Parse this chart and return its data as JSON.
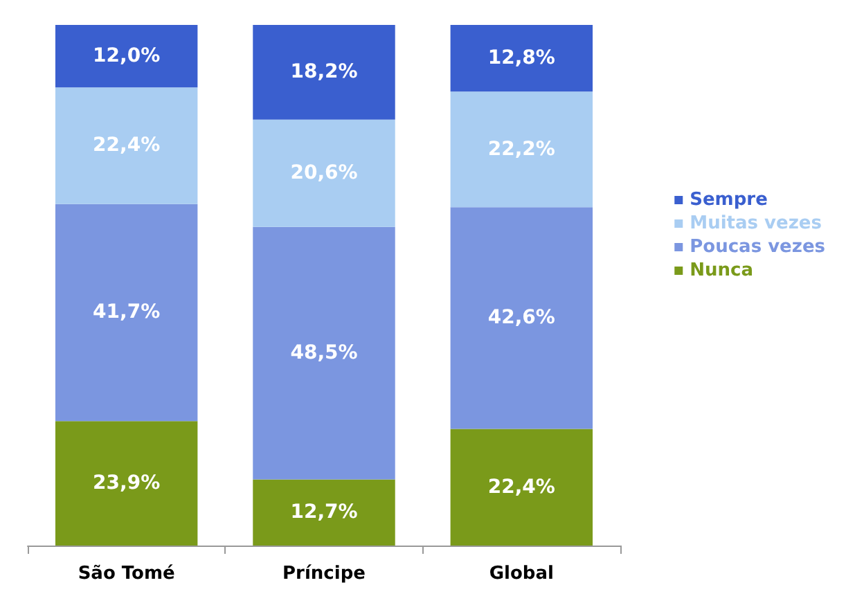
{
  "chart_data": {
    "type": "bar",
    "stacked": true,
    "categories": [
      "São Tomé",
      "Príncipe",
      "Global"
    ],
    "series": [
      {
        "name": "Nunca",
        "color": "#7a9a1a",
        "values": [
          23.9,
          12.7,
          22.4
        ],
        "value_labels": [
          "23,9%",
          "12,7%",
          "22,4%"
        ]
      },
      {
        "name": "Poucas vezes",
        "color": "#7b96e0",
        "values": [
          41.7,
          48.5,
          42.6
        ],
        "value_labels": [
          "41,7%",
          "48,5%",
          "42,6%"
        ]
      },
      {
        "name": "Muitas vezes",
        "color": "#a9cdf2",
        "values": [
          22.4,
          20.6,
          22.2
        ],
        "value_labels": [
          "22,4%",
          "20,6%",
          "22,2%"
        ]
      },
      {
        "name": "Sempre",
        "color": "#3a5fcf",
        "values": [
          12.0,
          18.2,
          12.8
        ],
        "value_labels": [
          "12,0%",
          "18,2%",
          "12,8%"
        ]
      }
    ],
    "legend": "right"
  }
}
